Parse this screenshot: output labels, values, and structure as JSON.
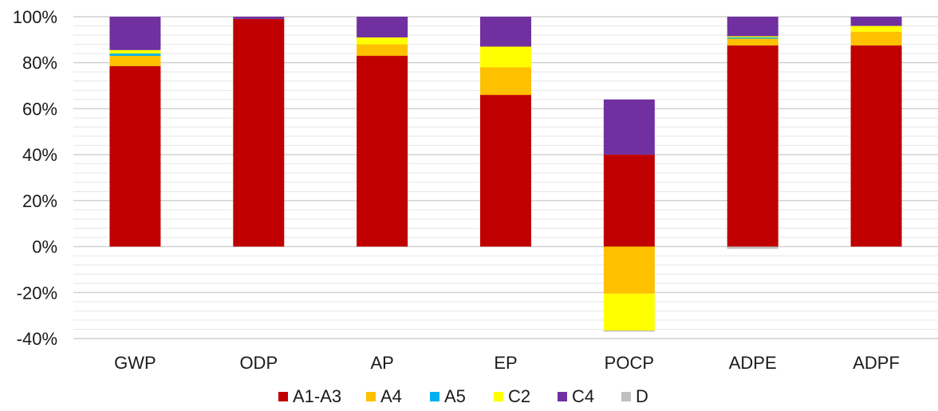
{
  "chart_data": {
    "type": "bar",
    "stacked": true,
    "ylim": [
      -40,
      100
    ],
    "yticks": [
      -40,
      -20,
      0,
      20,
      40,
      60,
      80,
      100
    ],
    "ytick_labels": [
      "-40%",
      "-20%",
      "0%",
      "20%",
      "40%",
      "60%",
      "80%",
      "100%"
    ],
    "minor_grid_step": 4,
    "grid": true,
    "legend_position": "bottom",
    "categories": [
      "GWP",
      "ODP",
      "AP",
      "EP",
      "POCP",
      "ADPE",
      "ADPF"
    ],
    "series": [
      {
        "name": "A1-A3",
        "color": "#C00000",
        "values": [
          78.5,
          99.0,
          83.0,
          66.0,
          40.0,
          87.5,
          87.5
        ]
      },
      {
        "name": "A4",
        "color": "#FFC000",
        "values": [
          4.5,
          0.0,
          5.0,
          12.0,
          -20.5,
          3.0,
          6.0
        ]
      },
      {
        "name": "A5",
        "color": "#00B0F0",
        "values": [
          1.0,
          0.0,
          0.0,
          0.0,
          0.0,
          0.5,
          0.0
        ]
      },
      {
        "name": "C2",
        "color": "#FFFF00",
        "values": [
          1.5,
          0.0,
          3.0,
          9.0,
          -16.0,
          0.5,
          2.5
        ]
      },
      {
        "name": "C4",
        "color": "#7030A0",
        "values": [
          14.5,
          1.0,
          9.0,
          13.0,
          24.0,
          8.5,
          4.0
        ]
      },
      {
        "name": "D",
        "color": "#BFBFBF",
        "values": [
          0.0,
          0.0,
          0.0,
          0.0,
          -0.5,
          -1.0,
          0.0
        ]
      }
    ]
  }
}
